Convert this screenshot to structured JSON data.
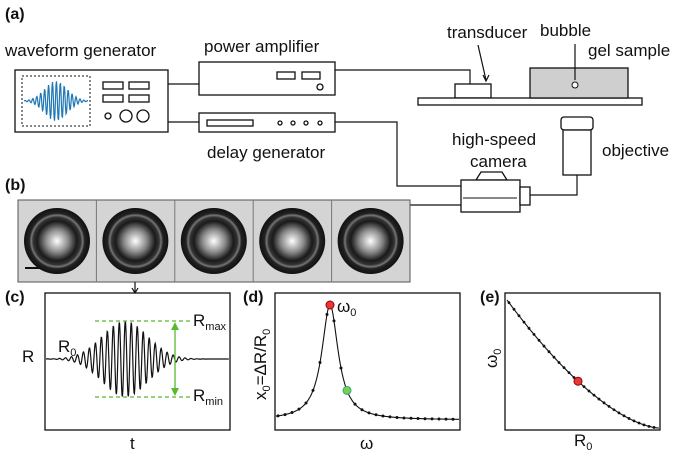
{
  "panel_labels": [
    "(a)",
    "(b)",
    "(c)",
    "(d)",
    "(e)"
  ],
  "setup": {
    "waveform_generator": "waveform generator",
    "power_amplifier": "power amplifier",
    "delay_generator": "delay generator",
    "transducer": "transducer",
    "bubble": "bubble",
    "gel_sample": "gel sample",
    "camera": [
      "high-speed",
      "camera"
    ],
    "objective": "objective"
  },
  "plot_c": {
    "y_label": "R",
    "x_label": "t",
    "r0": [
      "R",
      "0"
    ],
    "rmax": [
      "R",
      "max"
    ],
    "rmin": [
      "R",
      "min"
    ]
  },
  "plot_d": {
    "y_label": [
      "x",
      "0",
      "=ΔR/R",
      "0"
    ],
    "x_label": "ω",
    "peak": [
      "ω",
      "0"
    ]
  },
  "plot_e": {
    "y_label": [
      "ω",
      "0"
    ],
    "x_label": [
      "R",
      "0"
    ]
  }
}
